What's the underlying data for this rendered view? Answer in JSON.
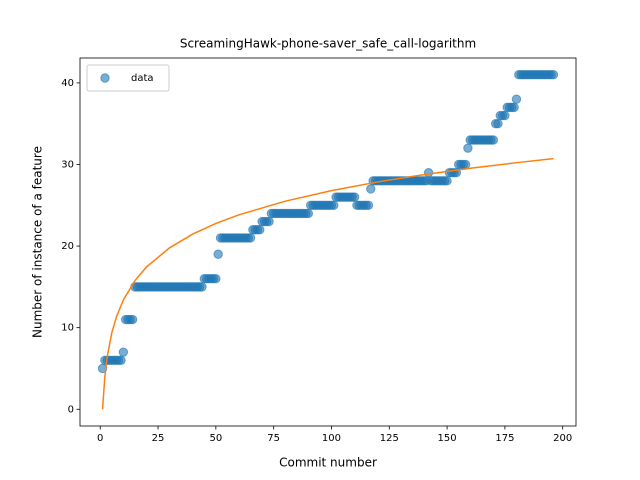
{
  "chart_data": {
    "type": "scatter",
    "title": "ScreamingHawk-phone-saver_safe_call-logarithm",
    "xlabel": "Commit number",
    "ylabel": "Number of instance of a feature",
    "xlim": [
      -8.75,
      205.75
    ],
    "ylim": [
      -2.05,
      43.05
    ],
    "xticks": [
      0,
      25,
      50,
      75,
      100,
      125,
      150,
      175,
      200
    ],
    "yticks": [
      0,
      10,
      20,
      30,
      40
    ],
    "legend": "upper left",
    "series": [
      {
        "name": "data",
        "type": "scatter",
        "color": "#1f77b4",
        "x": [
          1,
          2,
          3,
          4,
          5,
          6,
          7,
          8,
          9,
          10,
          11,
          12,
          13,
          14,
          15,
          16,
          17,
          18,
          19,
          20,
          21,
          22,
          23,
          24,
          25,
          26,
          27,
          28,
          29,
          30,
          31,
          32,
          33,
          34,
          35,
          36,
          37,
          38,
          39,
          40,
          41,
          42,
          43,
          44,
          45,
          46,
          47,
          48,
          49,
          50,
          51,
          52,
          53,
          54,
          55,
          56,
          57,
          58,
          59,
          60,
          61,
          62,
          63,
          64,
          65,
          66,
          67,
          68,
          69,
          70,
          71,
          72,
          73,
          74,
          75,
          76,
          77,
          78,
          79,
          80,
          81,
          82,
          83,
          84,
          85,
          86,
          87,
          88,
          89,
          90,
          91,
          92,
          93,
          94,
          95,
          96,
          97,
          98,
          99,
          100,
          101,
          102,
          103,
          104,
          105,
          106,
          107,
          108,
          109,
          110,
          111,
          112,
          113,
          114,
          115,
          116,
          117,
          118,
          119,
          120,
          121,
          122,
          123,
          124,
          125,
          126,
          127,
          128,
          129,
          130,
          131,
          132,
          133,
          134,
          135,
          136,
          137,
          138,
          139,
          140,
          141,
          142,
          143,
          144,
          145,
          146,
          147,
          148,
          149,
          150,
          151,
          152,
          153,
          154,
          155,
          156,
          157,
          158,
          159,
          160,
          161,
          162,
          163,
          164,
          165,
          166,
          167,
          168,
          169,
          170,
          171,
          172,
          173,
          174,
          175,
          176,
          177,
          178,
          179,
          180,
          181,
          182,
          183,
          184,
          185,
          186,
          187,
          188,
          189,
          190,
          191,
          192,
          193,
          194,
          195,
          196
        ],
        "values": [
          5,
          6,
          6,
          6,
          6,
          6,
          6,
          6,
          6,
          7,
          11,
          11,
          11,
          11,
          15,
          15,
          15,
          15,
          15,
          15,
          15,
          15,
          15,
          15,
          15,
          15,
          15,
          15,
          15,
          15,
          15,
          15,
          15,
          15,
          15,
          15,
          15,
          15,
          15,
          15,
          15,
          15,
          15,
          15,
          16,
          16,
          16,
          16,
          16,
          16,
          19,
          21,
          21,
          21,
          21,
          21,
          21,
          21,
          21,
          21,
          21,
          21,
          21,
          21,
          21,
          22,
          22,
          22,
          22,
          23,
          23,
          23,
          23,
          24,
          24,
          24,
          24,
          24,
          24,
          24,
          24,
          24,
          24,
          24,
          24,
          24,
          24,
          24,
          24,
          24,
          25,
          25,
          25,
          25,
          25,
          25,
          25,
          25,
          25,
          25,
          25,
          26,
          26,
          26,
          26,
          26,
          26,
          26,
          26,
          26,
          25,
          25,
          25,
          25,
          25,
          25,
          27,
          28,
          28,
          28,
          28,
          28,
          28,
          28,
          28,
          28,
          28,
          28,
          28,
          28,
          28,
          28,
          28,
          28,
          28,
          28,
          28,
          28,
          28,
          28,
          28,
          29,
          28,
          28,
          28,
          28,
          28,
          28,
          28,
          28,
          29,
          29,
          29,
          29,
          30,
          30,
          30,
          30,
          32,
          33,
          33,
          33,
          33,
          33,
          33,
          33,
          33,
          33,
          33,
          33,
          35,
          35,
          36,
          36,
          36,
          37,
          37,
          37,
          37,
          38,
          41,
          41,
          41,
          41,
          41,
          41,
          41,
          41,
          41,
          41,
          41,
          41,
          41,
          41,
          41,
          41
        ]
      },
      {
        "type": "line",
        "color": "#ff7f0e",
        "x": [
          1,
          2,
          3,
          5,
          7,
          10,
          15,
          20,
          30,
          40,
          50,
          60,
          80,
          100,
          120,
          140,
          160,
          180,
          196
        ],
        "values": [
          0,
          4.03,
          6.4,
          9.37,
          11.33,
          13.4,
          15.76,
          17.44,
          19.79,
          21.47,
          22.77,
          23.83,
          25.5,
          26.8,
          27.86,
          28.76,
          29.54,
          30.22,
          30.72
        ]
      }
    ]
  }
}
